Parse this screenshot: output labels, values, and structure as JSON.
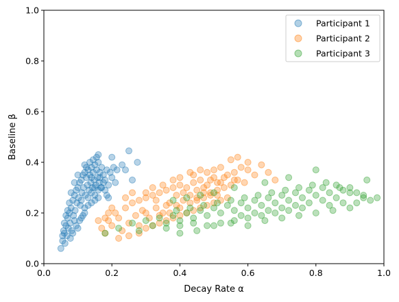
{
  "chart_data": {
    "type": "scatter",
    "title": "",
    "xlabel": "Decay Rate α",
    "ylabel": "Baseline β",
    "xlim": [
      0.0,
      1.0
    ],
    "ylim": [
      0.0,
      1.0
    ],
    "xticks": [
      "0.0",
      "0.2",
      "0.4",
      "0.6",
      "0.8",
      "1.0"
    ],
    "yticks": [
      "0.0",
      "0.2",
      "0.4",
      "0.6",
      "0.8",
      "1.0"
    ],
    "grid": false,
    "legend_position": "top-right",
    "series": [
      {
        "name": "Participant 1",
        "color": "#1f77b4",
        "points": [
          [
            0.05,
            0.06
          ],
          [
            0.055,
            0.09
          ],
          [
            0.06,
            0.12
          ],
          [
            0.062,
            0.08
          ],
          [
            0.065,
            0.15
          ],
          [
            0.068,
            0.11
          ],
          [
            0.07,
            0.18
          ],
          [
            0.072,
            0.14
          ],
          [
            0.075,
            0.2
          ],
          [
            0.077,
            0.16
          ],
          [
            0.08,
            0.22
          ],
          [
            0.082,
            0.13
          ],
          [
            0.085,
            0.25
          ],
          [
            0.087,
            0.19
          ],
          [
            0.09,
            0.27
          ],
          [
            0.092,
            0.21
          ],
          [
            0.095,
            0.29
          ],
          [
            0.097,
            0.24
          ],
          [
            0.1,
            0.3
          ],
          [
            0.102,
            0.26
          ],
          [
            0.105,
            0.32
          ],
          [
            0.107,
            0.23
          ],
          [
            0.11,
            0.33
          ],
          [
            0.112,
            0.28
          ],
          [
            0.115,
            0.35
          ],
          [
            0.117,
            0.3
          ],
          [
            0.12,
            0.36
          ],
          [
            0.122,
            0.27
          ],
          [
            0.125,
            0.34
          ],
          [
            0.128,
            0.31
          ],
          [
            0.13,
            0.37
          ],
          [
            0.133,
            0.29
          ],
          [
            0.135,
            0.35
          ],
          [
            0.138,
            0.32
          ],
          [
            0.14,
            0.38
          ],
          [
            0.143,
            0.3
          ],
          [
            0.145,
            0.36
          ],
          [
            0.148,
            0.33
          ],
          [
            0.15,
            0.39
          ],
          [
            0.153,
            0.31
          ],
          [
            0.155,
            0.37
          ],
          [
            0.158,
            0.34
          ],
          [
            0.16,
            0.4
          ],
          [
            0.163,
            0.32
          ],
          [
            0.165,
            0.36
          ],
          [
            0.168,
            0.3
          ],
          [
            0.17,
            0.38
          ],
          [
            0.175,
            0.35
          ],
          [
            0.18,
            0.33
          ],
          [
            0.185,
            0.37
          ],
          [
            0.19,
            0.31
          ],
          [
            0.195,
            0.36
          ],
          [
            0.2,
            0.34
          ],
          [
            0.205,
            0.38
          ],
          [
            0.21,
            0.32
          ],
          [
            0.215,
            0.37
          ],
          [
            0.16,
            0.43
          ],
          [
            0.25,
            0.445
          ],
          [
            0.24,
            0.37
          ],
          [
            0.275,
            0.4
          ],
          [
            0.26,
            0.33
          ],
          [
            0.2,
            0.42
          ],
          [
            0.23,
            0.39
          ],
          [
            0.185,
            0.27
          ],
          [
            0.12,
            0.39
          ],
          [
            0.1,
            0.35
          ],
          [
            0.09,
            0.32
          ],
          [
            0.08,
            0.28
          ],
          [
            0.075,
            0.24
          ],
          [
            0.07,
            0.21
          ],
          [
            0.065,
            0.19
          ],
          [
            0.06,
            0.16
          ],
          [
            0.058,
            0.13
          ],
          [
            0.055,
            0.11
          ],
          [
            0.11,
            0.25
          ],
          [
            0.12,
            0.22
          ],
          [
            0.13,
            0.26
          ],
          [
            0.14,
            0.28
          ],
          [
            0.15,
            0.27
          ],
          [
            0.16,
            0.29
          ],
          [
            0.17,
            0.3
          ],
          [
            0.115,
            0.19
          ],
          [
            0.105,
            0.17
          ],
          [
            0.095,
            0.15
          ],
          [
            0.085,
            0.12
          ],
          [
            0.078,
            0.1
          ],
          [
            0.14,
            0.34
          ],
          [
            0.15,
            0.3
          ],
          [
            0.125,
            0.38
          ],
          [
            0.135,
            0.4
          ],
          [
            0.145,
            0.41
          ],
          [
            0.155,
            0.42
          ],
          [
            0.165,
            0.34
          ],
          [
            0.175,
            0.32
          ],
          [
            0.18,
            0.29
          ],
          [
            0.19,
            0.26
          ],
          [
            0.1,
            0.14
          ],
          [
            0.09,
            0.17
          ],
          [
            0.11,
            0.18
          ],
          [
            0.12,
            0.2
          ],
          [
            0.13,
            0.23
          ],
          [
            0.14,
            0.24
          ],
          [
            0.15,
            0.25
          ],
          [
            0.16,
            0.26
          ]
        ]
      },
      {
        "name": "Participant 2",
        "color": "#ff7f0e",
        "points": [
          [
            0.17,
            0.14
          ],
          [
            0.18,
            0.12
          ],
          [
            0.19,
            0.17
          ],
          [
            0.2,
            0.15
          ],
          [
            0.21,
            0.2
          ],
          [
            0.22,
            0.18
          ],
          [
            0.23,
            0.13
          ],
          [
            0.24,
            0.22
          ],
          [
            0.25,
            0.16
          ],
          [
            0.26,
            0.24
          ],
          [
            0.27,
            0.19
          ],
          [
            0.28,
            0.25
          ],
          [
            0.29,
            0.21
          ],
          [
            0.3,
            0.26
          ],
          [
            0.31,
            0.18
          ],
          [
            0.32,
            0.27
          ],
          [
            0.33,
            0.22
          ],
          [
            0.34,
            0.28
          ],
          [
            0.35,
            0.2
          ],
          [
            0.36,
            0.29
          ],
          [
            0.37,
            0.24
          ],
          [
            0.38,
            0.3
          ],
          [
            0.39,
            0.23
          ],
          [
            0.4,
            0.31
          ],
          [
            0.41,
            0.25
          ],
          [
            0.42,
            0.3
          ],
          [
            0.43,
            0.27
          ],
          [
            0.44,
            0.32
          ],
          [
            0.45,
            0.26
          ],
          [
            0.46,
            0.33
          ],
          [
            0.47,
            0.28
          ],
          [
            0.48,
            0.31
          ],
          [
            0.49,
            0.27
          ],
          [
            0.5,
            0.34
          ],
          [
            0.51,
            0.29
          ],
          [
            0.52,
            0.32
          ],
          [
            0.53,
            0.3
          ],
          [
            0.54,
            0.35
          ],
          [
            0.55,
            0.31
          ],
          [
            0.56,
            0.36
          ],
          [
            0.57,
            0.33
          ],
          [
            0.58,
            0.38
          ],
          [
            0.59,
            0.32
          ],
          [
            0.6,
            0.37
          ],
          [
            0.62,
            0.35
          ],
          [
            0.64,
            0.39
          ],
          [
            0.66,
            0.36
          ],
          [
            0.68,
            0.33
          ],
          [
            0.55,
            0.41
          ],
          [
            0.57,
            0.42
          ],
          [
            0.6,
            0.4
          ],
          [
            0.52,
            0.38
          ],
          [
            0.5,
            0.37
          ],
          [
            0.48,
            0.36
          ],
          [
            0.46,
            0.37
          ],
          [
            0.44,
            0.35
          ],
          [
            0.22,
            0.1
          ],
          [
            0.25,
            0.11
          ],
          [
            0.28,
            0.12
          ],
          [
            0.3,
            0.14
          ],
          [
            0.32,
            0.15
          ],
          [
            0.34,
            0.16
          ],
          [
            0.36,
            0.17
          ],
          [
            0.38,
            0.18
          ],
          [
            0.4,
            0.19
          ],
          [
            0.42,
            0.2
          ],
          [
            0.44,
            0.21
          ],
          [
            0.46,
            0.22
          ],
          [
            0.48,
            0.23
          ],
          [
            0.5,
            0.24
          ],
          [
            0.52,
            0.25
          ],
          [
            0.54,
            0.26
          ],
          [
            0.3,
            0.28
          ],
          [
            0.32,
            0.3
          ],
          [
            0.35,
            0.31
          ],
          [
            0.38,
            0.33
          ],
          [
            0.4,
            0.34
          ],
          [
            0.43,
            0.36
          ],
          [
            0.26,
            0.28
          ],
          [
            0.24,
            0.26
          ],
          [
            0.2,
            0.22
          ],
          [
            0.19,
            0.2
          ],
          [
            0.18,
            0.18
          ],
          [
            0.16,
            0.17
          ],
          [
            0.28,
            0.15
          ],
          [
            0.3,
            0.2
          ],
          [
            0.33,
            0.25
          ],
          [
            0.36,
            0.23
          ],
          [
            0.39,
            0.27
          ],
          [
            0.41,
            0.28
          ],
          [
            0.45,
            0.29
          ],
          [
            0.47,
            0.3
          ],
          [
            0.49,
            0.33
          ],
          [
            0.51,
            0.32
          ],
          [
            0.53,
            0.34
          ],
          [
            0.56,
            0.33
          ],
          [
            0.34,
            0.19
          ],
          [
            0.37,
            0.2
          ],
          [
            0.4,
            0.22
          ],
          [
            0.43,
            0.24
          ],
          [
            0.45,
            0.25
          ],
          [
            0.47,
            0.26
          ],
          [
            0.49,
            0.28
          ],
          [
            0.51,
            0.27
          ]
        ]
      },
      {
        "name": "Participant 3",
        "color": "#2ca02c",
        "points": [
          [
            0.18,
            0.12
          ],
          [
            0.22,
            0.14
          ],
          [
            0.26,
            0.16
          ],
          [
            0.28,
            0.13
          ],
          [
            0.3,
            0.17
          ],
          [
            0.32,
            0.15
          ],
          [
            0.34,
            0.18
          ],
          [
            0.36,
            0.16
          ],
          [
            0.38,
            0.19
          ],
          [
            0.4,
            0.17
          ],
          [
            0.42,
            0.2
          ],
          [
            0.44,
            0.18
          ],
          [
            0.46,
            0.21
          ],
          [
            0.48,
            0.19
          ],
          [
            0.5,
            0.22
          ],
          [
            0.52,
            0.2
          ],
          [
            0.54,
            0.23
          ],
          [
            0.56,
            0.21
          ],
          [
            0.58,
            0.24
          ],
          [
            0.6,
            0.22
          ],
          [
            0.62,
            0.25
          ],
          [
            0.64,
            0.23
          ],
          [
            0.66,
            0.26
          ],
          [
            0.68,
            0.24
          ],
          [
            0.7,
            0.27
          ],
          [
            0.72,
            0.25
          ],
          [
            0.74,
            0.28
          ],
          [
            0.76,
            0.26
          ],
          [
            0.78,
            0.29
          ],
          [
            0.8,
            0.27
          ],
          [
            0.82,
            0.3
          ],
          [
            0.84,
            0.28
          ],
          [
            0.86,
            0.31
          ],
          [
            0.88,
            0.29
          ],
          [
            0.9,
            0.3
          ],
          [
            0.92,
            0.28
          ],
          [
            0.94,
            0.27
          ],
          [
            0.96,
            0.25
          ],
          [
            0.98,
            0.26
          ],
          [
            0.95,
            0.33
          ],
          [
            0.4,
            0.12
          ],
          [
            0.45,
            0.13
          ],
          [
            0.5,
            0.15
          ],
          [
            0.55,
            0.16
          ],
          [
            0.6,
            0.15
          ],
          [
            0.65,
            0.17
          ],
          [
            0.7,
            0.18
          ],
          [
            0.75,
            0.19
          ],
          [
            0.8,
            0.2
          ],
          [
            0.85,
            0.21
          ],
          [
            0.9,
            0.22
          ],
          [
            0.58,
            0.19
          ],
          [
            0.62,
            0.2
          ],
          [
            0.66,
            0.21
          ],
          [
            0.7,
            0.22
          ],
          [
            0.74,
            0.23
          ],
          [
            0.78,
            0.24
          ],
          [
            0.82,
            0.25
          ],
          [
            0.86,
            0.26
          ],
          [
            0.88,
            0.24
          ],
          [
            0.84,
            0.23
          ],
          [
            0.76,
            0.22
          ],
          [
            0.72,
            0.21
          ],
          [
            0.68,
            0.2
          ],
          [
            0.64,
            0.19
          ],
          [
            0.6,
            0.18
          ],
          [
            0.56,
            0.17
          ],
          [
            0.52,
            0.16
          ],
          [
            0.48,
            0.15
          ],
          [
            0.44,
            0.16
          ],
          [
            0.4,
            0.15
          ],
          [
            0.36,
            0.14
          ],
          [
            0.8,
            0.37
          ],
          [
            0.72,
            0.34
          ],
          [
            0.65,
            0.32
          ],
          [
            0.56,
            0.3
          ],
          [
            0.5,
            0.28
          ],
          [
            0.46,
            0.27
          ],
          [
            0.42,
            0.26
          ],
          [
            0.38,
            0.25
          ],
          [
            0.92,
            0.24
          ],
          [
            0.94,
            0.26
          ],
          [
            0.9,
            0.28
          ],
          [
            0.87,
            0.3
          ],
          [
            0.83,
            0.32
          ],
          [
            0.79,
            0.31
          ],
          [
            0.75,
            0.3
          ],
          [
            0.71,
            0.29
          ],
          [
            0.67,
            0.28
          ],
          [
            0.63,
            0.27
          ],
          [
            0.59,
            0.26
          ],
          [
            0.55,
            0.25
          ],
          [
            0.51,
            0.24
          ],
          [
            0.47,
            0.23
          ],
          [
            0.43,
            0.22
          ],
          [
            0.39,
            0.21
          ]
        ]
      }
    ]
  }
}
